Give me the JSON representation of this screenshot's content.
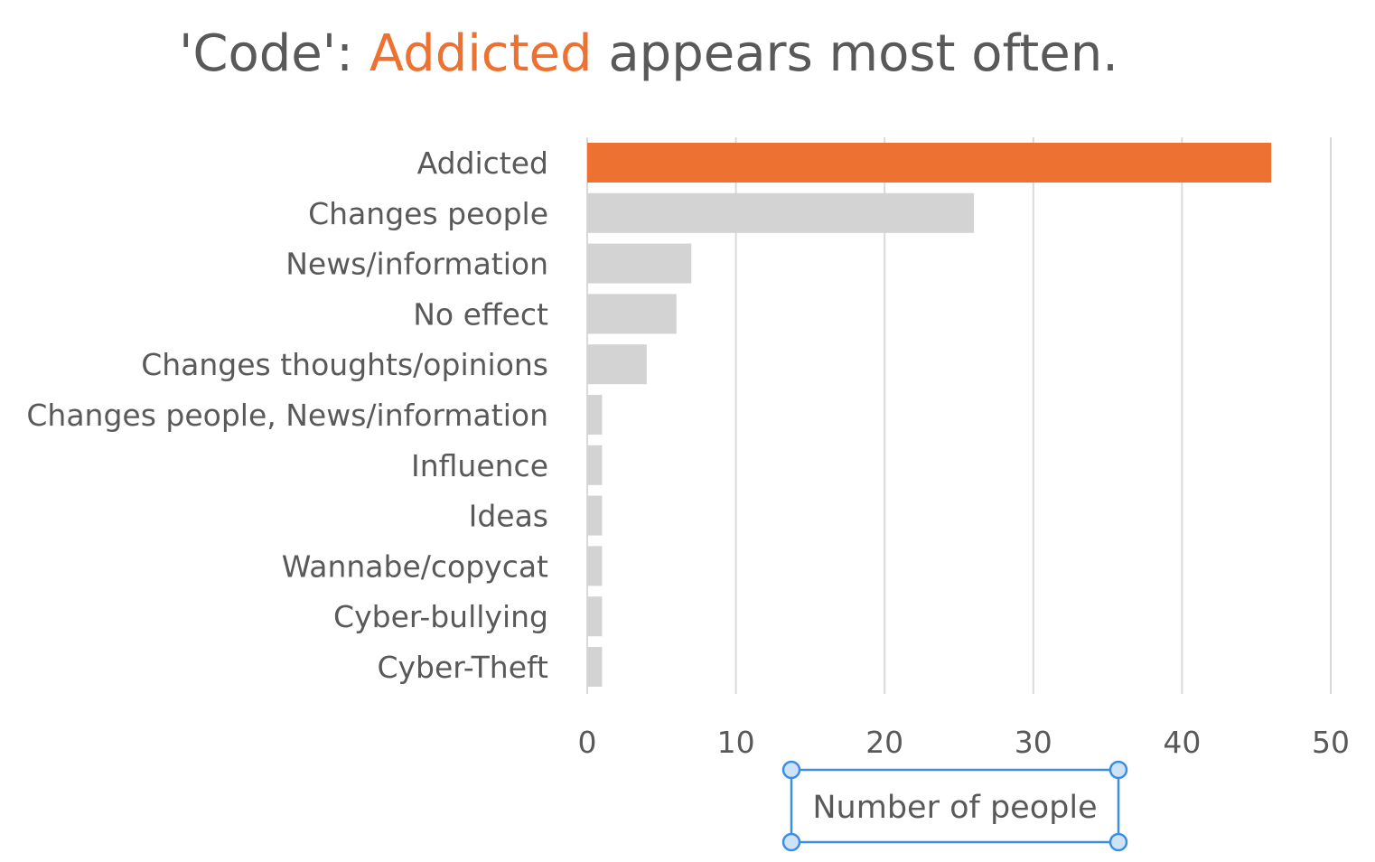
{
  "title": {
    "prefix": "'Code': ",
    "highlight": "Addicted",
    "suffix": " appears most often."
  },
  "colors": {
    "highlight": "#ED7131",
    "bar": "#D3D3D3",
    "grid": "#D9D9D9",
    "text": "#595959",
    "selection": "#3C8EE0"
  },
  "chart_data": {
    "type": "bar",
    "orientation": "horizontal",
    "categories": [
      "Addicted",
      "Changes people",
      "News/information",
      "No effect",
      "Changes thoughts/opinions",
      "Changes people, News/information",
      "Influence",
      "Ideas",
      "Wannabe/copycat",
      "Cyber-bullying",
      "Cyber-Theft"
    ],
    "values": [
      46,
      26,
      7,
      6,
      4,
      1,
      1,
      1,
      1,
      1,
      1
    ],
    "highlight_category": "Addicted",
    "xlabel": "Number of people",
    "xlim": [
      0,
      50
    ],
    "xticks": [
      0,
      10,
      20,
      30,
      40,
      50
    ],
    "grid": "vertical",
    "legend": "none",
    "xlabel_selected": true
  }
}
